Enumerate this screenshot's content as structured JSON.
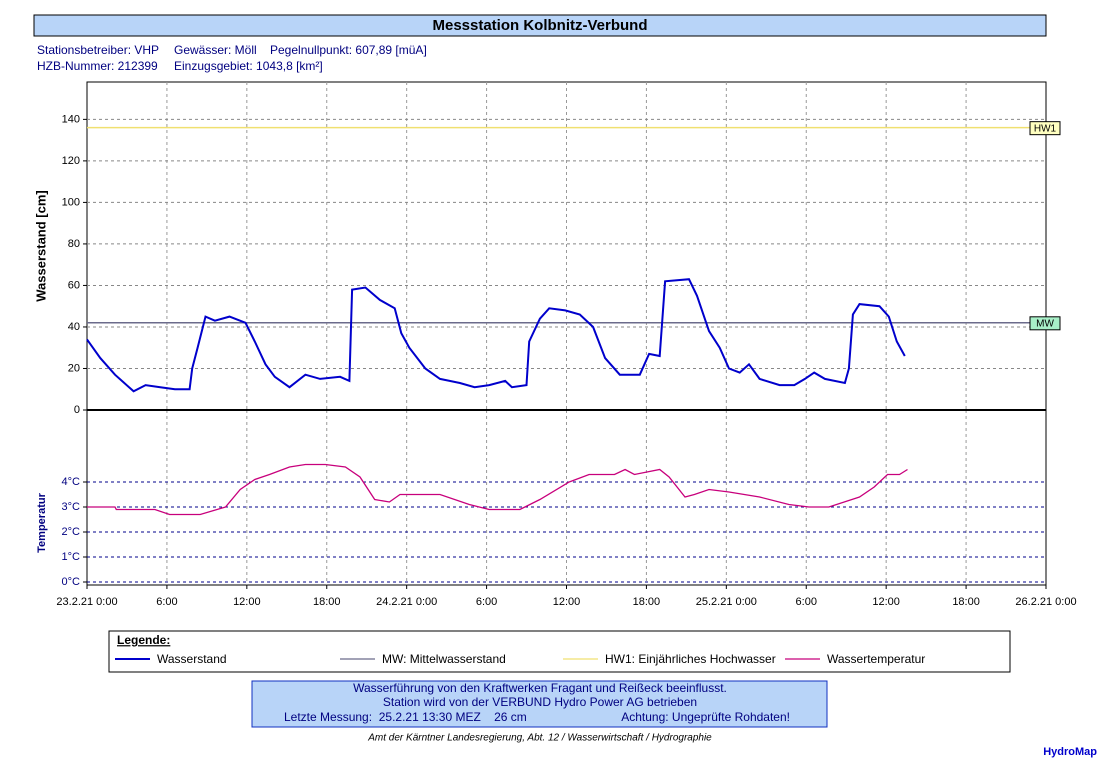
{
  "title": "Messstation Kolbnitz-Verbund",
  "station_info": [
    [
      "Stationsbetreiber: VHP",
      "Gewässer: Möll",
      "Pegelnullpunkt: 607,89 [müA]"
    ],
    [
      "HZB-Nummer: 212399",
      "Einzugsgebiet: 1043,8 [km²]"
    ]
  ],
  "chart_data": [
    {
      "type": "line",
      "ylabel": "Wasserstand [cm]",
      "xlim": [
        0,
        72
      ],
      "xticks": [
        0,
        6,
        12,
        18,
        24,
        30,
        36,
        42,
        48,
        54,
        60,
        66,
        72
      ],
      "ylim": [
        0,
        158
      ],
      "yticks": [
        0,
        20,
        40,
        60,
        80,
        100,
        120,
        140
      ],
      "grid": true,
      "hlines": [
        {
          "name": "MW: Mittelwasserstand",
          "label": "MW",
          "value": 42,
          "color": "#6b6b8b",
          "box_color": "#a8f0c8"
        },
        {
          "name": "HW1: Einjährliches Hochwasser",
          "label": "HW1",
          "value": 136,
          "color": "#f0e070",
          "box_color": "#ffffc0"
        }
      ],
      "series": [
        {
          "name": "Wasserstand",
          "color": "#0000cc",
          "x": [
            0,
            1,
            2.1,
            3.5,
            4.4,
            5.5,
            6.6,
            7.7,
            7.9,
            8.3,
            8.9,
            9.6,
            10.7,
            11.9,
            12.6,
            13.4,
            14.1,
            15.2,
            16.4,
            17.5,
            19,
            19.7,
            19.9,
            20.9,
            22,
            23.1,
            23.6,
            24.2,
            25.4,
            26.5,
            28,
            29.1,
            30.2,
            31.4,
            31.9,
            33,
            33.2,
            34,
            34.7,
            35.9,
            37,
            38,
            38.9,
            40,
            41.5,
            42.2,
            43,
            43.4,
            45.2,
            45.8,
            46.7,
            47.5,
            48.2,
            49,
            49.7,
            50.5,
            52,
            53.1,
            53.9,
            54.6,
            55.4,
            56.9,
            57.2,
            57.5,
            58,
            59.5,
            60.2,
            60.8,
            61.4
          ],
          "values": [
            34,
            25,
            17,
            9,
            12,
            11,
            10,
            10,
            20,
            30,
            45,
            43,
            45,
            42,
            33,
            22,
            16,
            11,
            17,
            15,
            16,
            14,
            58,
            59,
            53,
            49,
            37,
            30,
            20,
            15,
            13,
            11,
            12,
            14,
            11,
            12,
            33,
            44,
            49,
            48,
            46,
            40,
            25,
            17,
            17,
            27,
            26,
            62,
            63,
            55,
            38,
            30,
            20,
            18,
            22,
            15,
            12,
            12,
            15,
            18,
            15,
            13,
            20,
            46,
            51,
            50,
            45,
            33,
            26
          ]
        }
      ]
    },
    {
      "type": "line",
      "ylabel": "Temperatur",
      "xlim": [
        0,
        72
      ],
      "xticks": [
        {
          "value": 0,
          "label": "23.2.21 0:00"
        },
        {
          "value": 6,
          "label": "6:00"
        },
        {
          "value": 12,
          "label": "12:00"
        },
        {
          "value": 18,
          "label": "18:00"
        },
        {
          "value": 24,
          "label": "24.2.21 0:00"
        },
        {
          "value": 30,
          "label": "6:00"
        },
        {
          "value": 36,
          "label": "12:00"
        },
        {
          "value": 42,
          "label": "18:00"
        },
        {
          "value": 48,
          "label": "25.2.21 0:00"
        },
        {
          "value": 54,
          "label": "6:00"
        },
        {
          "value": 60,
          "label": "12:00"
        },
        {
          "value": 66,
          "label": "18:00"
        },
        {
          "value": 72,
          "label": "26.2.21 0:00"
        }
      ],
      "ylim": [
        -0.12,
        6.88
      ],
      "yticks": [
        {
          "value": 0,
          "label": "0°C"
        },
        {
          "value": 1,
          "label": "1°C"
        },
        {
          "value": 2,
          "label": "2°C"
        },
        {
          "value": 3,
          "label": "3°C"
        },
        {
          "value": 4,
          "label": "4°C"
        }
      ],
      "grid": true,
      "series": [
        {
          "name": "Wassertemperatur",
          "color": "#c8007c",
          "x": [
            0,
            2.1,
            2.2,
            5.1,
            6.2,
            8.5,
            10.4,
            11.5,
            12.6,
            13.7,
            15.2,
            16.4,
            17.9,
            19.4,
            20.5,
            21.6,
            22.7,
            23.5,
            26.5,
            28.7,
            30.2,
            32.5,
            34,
            36.2,
            37.7,
            39.6,
            40.4,
            41.1,
            43,
            43.7,
            44.9,
            45.6,
            46.7,
            48.2,
            50.5,
            52.7,
            54.2,
            55.7,
            58,
            59.1,
            60.1,
            61,
            61.6
          ],
          "values": [
            3.0,
            3.0,
            2.9,
            2.9,
            2.7,
            2.7,
            3.0,
            3.7,
            4.1,
            4.3,
            4.6,
            4.7,
            4.7,
            4.6,
            4.2,
            3.3,
            3.2,
            3.5,
            3.5,
            3.1,
            2.9,
            2.9,
            3.3,
            4.0,
            4.3,
            4.3,
            4.5,
            4.3,
            4.5,
            4.2,
            3.4,
            3.5,
            3.7,
            3.6,
            3.4,
            3.1,
            3.0,
            3.0,
            3.4,
            3.8,
            4.3,
            4.3,
            4.5
          ]
        }
      ]
    }
  ],
  "legend_title": "Legende:",
  "notice": {
    "lines": [
      "Wasserführung von den Kraftwerken Fragant und Reißeck beeinflusst.",
      "Station wird von der VERBUND Hydro Power AG betrieben"
    ],
    "last_measurement": "Letzte Messung:  25.2.21 13:30 MEZ    26 cm",
    "warning": "Achtung: Ungeprüfte Rohdaten!"
  },
  "source": "Amt der Kärntner Landesregierung, Abt. 12 / Wasserwirtschaft / Hydrographie",
  "brand": "HydroMap"
}
